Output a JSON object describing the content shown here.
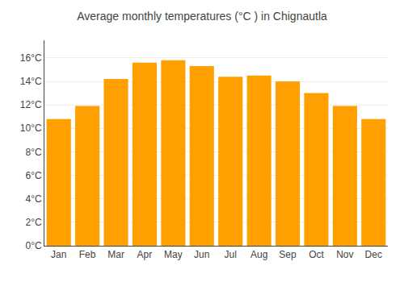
{
  "chart_data": {
    "type": "bar",
    "title": "Average monthly temperatures (°C ) in Chignautla",
    "categories": [
      "Jan",
      "Feb",
      "Mar",
      "Apr",
      "May",
      "Jun",
      "Jul",
      "Aug",
      "Sep",
      "Oct",
      "Nov",
      "Dec"
    ],
    "values": [
      10.8,
      11.9,
      14.2,
      15.6,
      15.8,
      15.3,
      14.4,
      14.5,
      14.0,
      13.0,
      11.9,
      10.8
    ],
    "color": "#FFA000",
    "ylim": [
      0,
      17.5
    ],
    "yticks": [
      {
        "value": 0,
        "label": "0°C"
      },
      {
        "value": 2,
        "label": "2°C"
      },
      {
        "value": 4,
        "label": "4°C"
      },
      {
        "value": 6,
        "label": "6°C"
      },
      {
        "value": 8,
        "label": "8°C"
      },
      {
        "value": 10,
        "label": "10°C"
      },
      {
        "value": 12,
        "label": "12°C"
      },
      {
        "value": 14,
        "label": "14°C"
      },
      {
        "value": 16,
        "label": "16°C"
      }
    ],
    "grid": true
  }
}
